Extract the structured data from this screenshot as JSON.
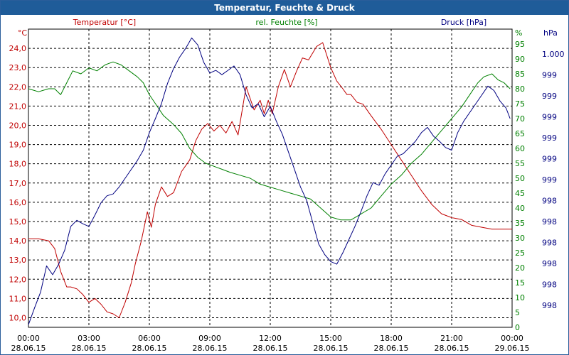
{
  "window": {
    "title": "Temperatur, Feuchte & Druck"
  },
  "colors": {
    "temperature": "#c00000",
    "humidity": "#008000",
    "pressure": "#000080",
    "grid": "#000000",
    "titlebar": "#1f5c99"
  },
  "chart_data": {
    "type": "line",
    "title": "Temperatur, Feuchte & Druck",
    "grid": true,
    "x_ticks": [
      {
        "time": "00:00",
        "date": "28.06.15"
      },
      {
        "time": "03:00",
        "date": "28.06.15"
      },
      {
        "time": "06:00",
        "date": "28.06.15"
      },
      {
        "time": "09:00",
        "date": "28.06.15"
      },
      {
        "time": "12:00",
        "date": "28.06.15"
      },
      {
        "time": "15:00",
        "date": "28.06.15"
      },
      {
        "time": "18:00",
        "date": "28.06.15"
      },
      {
        "time": "21:00",
        "date": "28.06.15"
      },
      {
        "time": "00:00",
        "date": "29.06.15"
      }
    ],
    "xlim": [
      0,
      24
    ],
    "axes": {
      "temperature": {
        "label": "Temperatur [°C]",
        "unit": "°C",
        "ylim": [
          9.5,
          25.0
        ],
        "ticks": [
          "10,0",
          "11,0",
          "12,0",
          "13,0",
          "14,0",
          "15,0",
          "16,0",
          "17,0",
          "18,0",
          "19,0",
          "20,0",
          "21,0",
          "22,0",
          "23,0",
          "24,0"
        ]
      },
      "humidity": {
        "label": "rel. Feuchte [%]",
        "unit": "%",
        "ylim": [
          0,
          100
        ],
        "ticks": [
          "0",
          "5",
          "10",
          "15",
          "20",
          "25",
          "30",
          "35",
          "40",
          "45",
          "50",
          "55",
          "60",
          "65",
          "70",
          "75",
          "80",
          "85",
          "90",
          "95"
        ]
      },
      "pressure": {
        "label": "Druck [hPa]",
        "unit": "hPa",
        "ylim": [
          997.4,
          1000.8
        ],
        "ticks": [
          "998",
          "998",
          "998",
          "998",
          "998",
          "998",
          "999",
          "999",
          "999",
          "999",
          "999",
          "999",
          "1.000"
        ]
      }
    },
    "series": [
      {
        "name": "Temperatur [°C]",
        "axis": "temperature",
        "x": [
          0,
          0.5,
          1.0,
          1.3,
          1.6,
          1.9,
          2.1,
          2.4,
          2.7,
          3.0,
          3.3,
          3.6,
          3.9,
          4.2,
          4.5,
          4.8,
          5.1,
          5.3,
          5.6,
          5.9,
          6.1,
          6.3,
          6.6,
          6.9,
          7.2,
          7.6,
          8.0,
          8.3,
          8.6,
          8.9,
          9.2,
          9.5,
          9.8,
          10.1,
          10.4,
          10.8,
          11.2,
          11.5,
          11.7,
          11.9,
          12.1,
          12.4,
          12.7,
          13.0,
          13.3,
          13.6,
          13.9,
          14.3,
          14.6,
          15.0,
          15.3,
          15.6,
          15.8,
          16.0,
          16.3,
          16.6,
          17.0,
          17.5,
          18.0,
          18.5,
          19.0,
          19.5,
          20.0,
          20.5,
          21.0,
          21.5,
          22.0,
          22.5,
          23.0,
          23.5,
          24.0
        ],
        "values": [
          14.1,
          14.1,
          14.0,
          13.6,
          12.4,
          11.6,
          11.6,
          11.5,
          11.2,
          10.8,
          11.0,
          10.7,
          10.3,
          10.2,
          10.0,
          10.8,
          11.8,
          12.8,
          14.0,
          15.5,
          14.7,
          15.9,
          16.8,
          16.3,
          16.5,
          17.6,
          18.2,
          19.2,
          19.8,
          20.1,
          19.7,
          20.0,
          19.6,
          20.2,
          19.5,
          22.0,
          20.8,
          21.3,
          20.6,
          21.3,
          20.6,
          22.0,
          22.9,
          22.0,
          22.8,
          23.5,
          23.4,
          24.1,
          24.3,
          23.0,
          22.3,
          21.9,
          21.6,
          21.6,
          21.2,
          21.1,
          20.5,
          19.8,
          19.0,
          18.2,
          17.4,
          16.6,
          15.9,
          15.4,
          15.2,
          15.1,
          14.8,
          14.7,
          14.6,
          14.6,
          14.6
        ]
      },
      {
        "name": "rel. Feuchte [%]",
        "axis": "humidity",
        "x": [
          0,
          0.5,
          1.0,
          1.3,
          1.6,
          1.9,
          2.2,
          2.6,
          3.0,
          3.4,
          3.8,
          4.2,
          4.6,
          5.0,
          5.4,
          5.7,
          6.0,
          6.3,
          6.7,
          7.2,
          7.6,
          8.0,
          8.4,
          8.8,
          9.2,
          9.6,
          10.0,
          10.5,
          11.0,
          11.5,
          12.0,
          12.5,
          13.0,
          13.5,
          14.0,
          14.5,
          15.0,
          15.5,
          16.0,
          16.5,
          17.0,
          17.5,
          18.0,
          18.5,
          19.0,
          19.5,
          20.0,
          20.5,
          21.0,
          21.5,
          22.0,
          22.3,
          22.6,
          23.0,
          23.3,
          23.6,
          23.9
        ],
        "values": [
          80,
          79,
          80,
          80,
          78,
          82,
          86,
          85,
          87,
          86,
          88,
          89,
          88,
          86,
          84,
          82,
          78,
          75,
          71,
          68,
          65,
          60,
          57,
          55,
          54,
          53,
          52,
          51,
          50,
          48,
          47,
          46,
          45,
          44,
          43,
          40,
          37,
          36,
          36,
          38,
          40,
          44,
          48,
          51,
          55,
          58,
          62,
          66,
          70,
          74,
          79,
          82,
          84,
          85,
          83,
          82,
          80
        ]
      },
      {
        "name": "Druck [hPa]",
        "axis": "pressure",
        "x": [
          0,
          0.3,
          0.6,
          0.9,
          1.2,
          1.5,
          1.8,
          2.1,
          2.4,
          2.7,
          3.0,
          3.3,
          3.6,
          3.9,
          4.2,
          4.5,
          4.8,
          5.1,
          5.4,
          5.7,
          6.0,
          6.3,
          6.6,
          6.9,
          7.2,
          7.5,
          7.8,
          8.1,
          8.4,
          8.7,
          9.0,
          9.3,
          9.6,
          9.9,
          10.2,
          10.5,
          10.8,
          11.1,
          11.4,
          11.7,
          12.0,
          12.3,
          12.6,
          12.9,
          13.2,
          13.5,
          13.8,
          14.1,
          14.4,
          14.7,
          15.0,
          15.3,
          15.6,
          15.9,
          16.2,
          16.5,
          16.8,
          17.1,
          17.4,
          17.7,
          18.0,
          18.3,
          18.6,
          18.9,
          19.2,
          19.5,
          19.8,
          20.1,
          20.4,
          20.7,
          21.0,
          21.3,
          21.6,
          21.9,
          22.2,
          22.5,
          22.8,
          23.1,
          23.4,
          23.7,
          23.9
        ],
        "values": [
          997.43,
          997.62,
          997.8,
          998.1,
          998.0,
          998.12,
          998.28,
          998.55,
          998.62,
          998.58,
          998.55,
          998.68,
          998.82,
          998.9,
          998.92,
          999.0,
          999.1,
          999.2,
          999.3,
          999.42,
          999.62,
          999.78,
          999.95,
          1000.18,
          1000.35,
          1000.48,
          1000.58,
          1000.7,
          1000.62,
          1000.42,
          1000.3,
          1000.33,
          1000.28,
          1000.33,
          1000.38,
          1000.28,
          1000.05,
          999.9,
          999.95,
          999.8,
          999.92,
          999.75,
          999.6,
          999.4,
          999.2,
          999.0,
          998.85,
          998.6,
          998.35,
          998.23,
          998.15,
          998.12,
          998.25,
          998.4,
          998.55,
          998.72,
          998.9,
          999.05,
          999.02,
          999.15,
          999.25,
          999.35,
          999.38,
          999.45,
          999.52,
          999.62,
          999.68,
          999.58,
          999.52,
          999.45,
          999.42,
          999.62,
          999.75,
          999.85,
          999.95,
          1000.05,
          1000.15,
          1000.1,
          999.98,
          999.9,
          999.78
        ]
      }
    ]
  }
}
